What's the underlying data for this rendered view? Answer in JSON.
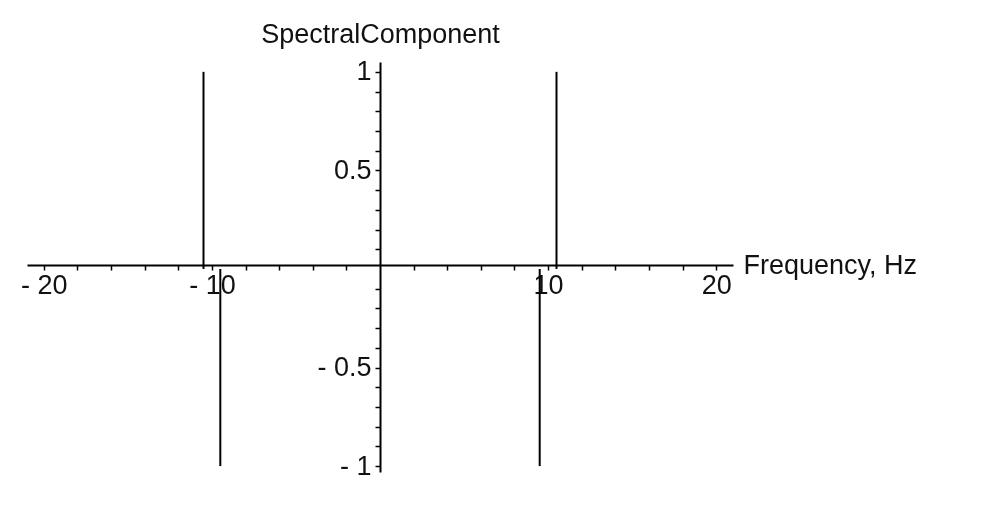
{
  "chart_data": {
    "type": "bar",
    "xlabel": "Frequency, Hz",
    "ylabel": "SpectralComponent",
    "x": [
      -10.5,
      -9.5,
      9.5,
      10.5
    ],
    "series": [
      {
        "color": "#000000",
        "values": [
          1,
          -1,
          -1,
          1
        ]
      }
    ],
    "xlim": [
      -21,
      21
    ],
    "ylim": [
      -1.03,
      1.05
    ],
    "xticks": [
      {
        "value": -20,
        "label": "- 20"
      },
      {
        "value": -18,
        "label": null
      },
      {
        "value": -16,
        "label": null
      },
      {
        "value": -14,
        "label": null
      },
      {
        "value": -12,
        "label": null
      },
      {
        "value": -10,
        "label": "- 10"
      },
      {
        "value": -8,
        "label": null
      },
      {
        "value": -6,
        "label": null
      },
      {
        "value": -4,
        "label": null
      },
      {
        "value": -2,
        "label": null
      },
      {
        "value": 2,
        "label": null
      },
      {
        "value": 4,
        "label": null
      },
      {
        "value": 6,
        "label": null
      },
      {
        "value": 8,
        "label": null
      },
      {
        "value": 10,
        "label": "10"
      },
      {
        "value": 12,
        "label": null
      },
      {
        "value": 14,
        "label": null
      },
      {
        "value": 16,
        "label": null
      },
      {
        "value": 18,
        "label": null
      },
      {
        "value": 20,
        "label": "20"
      }
    ],
    "yticks": [
      {
        "value": -1,
        "label": "- 1"
      },
      {
        "value": -0.9,
        "label": null
      },
      {
        "value": -0.8,
        "label": null
      },
      {
        "value": -0.7,
        "label": null
      },
      {
        "value": -0.6,
        "label": null
      },
      {
        "value": -0.5,
        "label": "- 0.5"
      },
      {
        "value": -0.4,
        "label": null
      },
      {
        "value": -0.3,
        "label": null
      },
      {
        "value": -0.2,
        "label": null
      },
      {
        "value": -0.1,
        "label": null
      },
      {
        "value": 0.1,
        "label": null
      },
      {
        "value": 0.2,
        "label": null
      },
      {
        "value": 0.3,
        "label": null
      },
      {
        "value": 0.4,
        "label": null
      },
      {
        "value": 0.5,
        "label": "0.5"
      },
      {
        "value": 0.6,
        "label": null
      },
      {
        "value": 0.7,
        "label": null
      },
      {
        "value": 0.8,
        "label": null
      },
      {
        "value": 0.9,
        "label": null
      },
      {
        "value": 1,
        "label": "1"
      }
    ]
  }
}
